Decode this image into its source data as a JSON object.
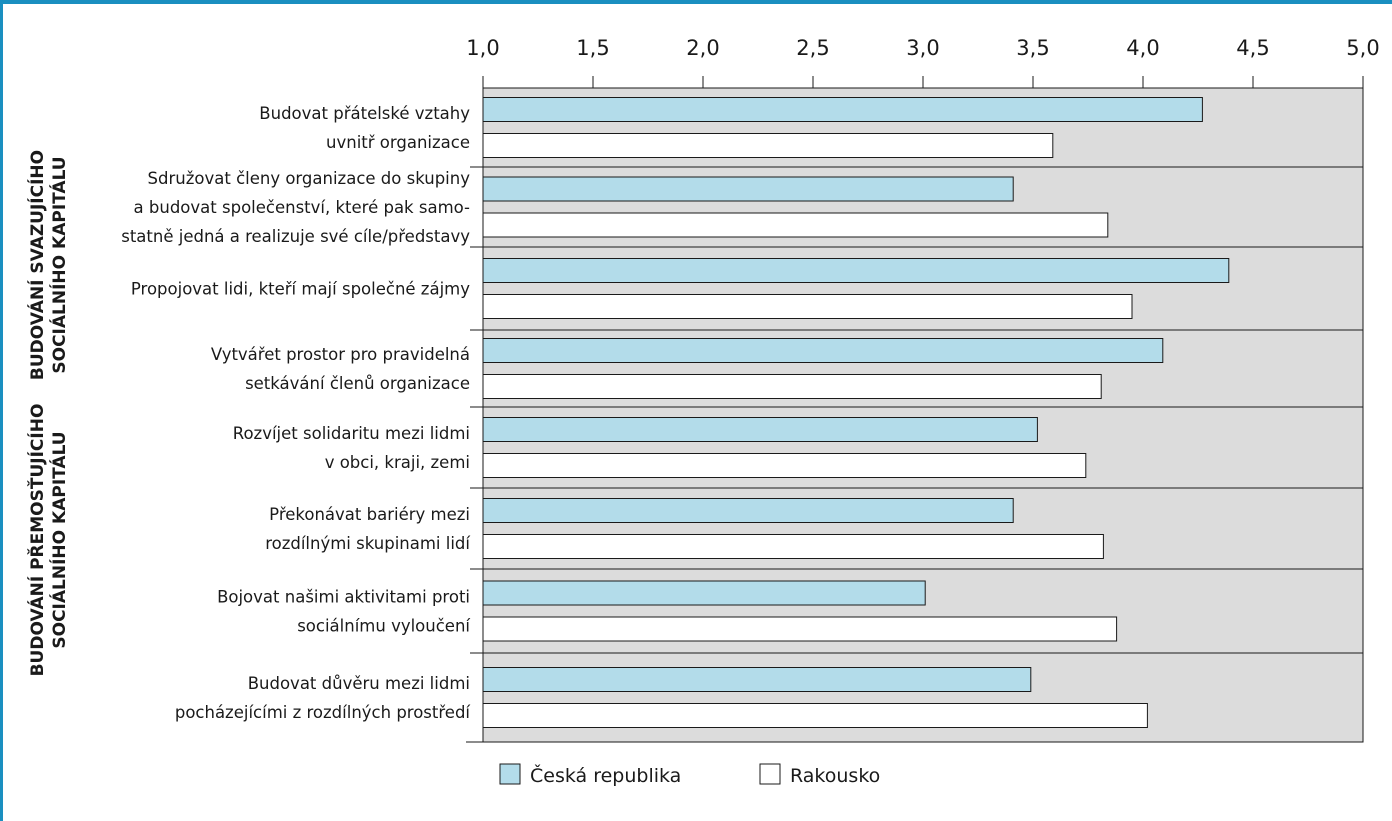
{
  "colors": {
    "ceska_republika": "#b3dcea",
    "rakousko": "#ffffff",
    "plot_background": "#dcdcdc",
    "frame_accent": "#1a8fc0"
  },
  "chart_data": {
    "type": "bar",
    "orientation": "horizontal",
    "xlim": [
      1.0,
      5.0
    ],
    "x_ticks": [
      "1,0",
      "1,5",
      "2,0",
      "2,5",
      "3,0",
      "3,5",
      "4,0",
      "4,5",
      "5,0"
    ],
    "categories": [
      [
        "Budovat přátelské vztahy",
        "uvnitř organizace"
      ],
      [
        "Sdružovat členy organizace do skupiny",
        "a budovat společenství, které pak samo-",
        "statně jedná a realizuje své cíle/představy"
      ],
      [
        "Propojovat lidi, kteří mají společné zájmy"
      ],
      [
        "Vytvářet prostor pro pravidelná",
        "setkávání členů organizace"
      ],
      [
        "Rozvíjet solidaritu mezi lidmi",
        "v obci, kraji, zemi"
      ],
      [
        "Překonávat bariéry mezi",
        "rozdílnými skupinami lidí"
      ],
      [
        "Bojovat našimi aktivitami proti",
        "sociálnímu vyloučení"
      ],
      [
        "Budovat důvěru mezi lidmi",
        "pocházejícími z rozdílných prostředí"
      ]
    ],
    "series": [
      {
        "name": "Česká republika",
        "values": [
          4.27,
          3.41,
          4.39,
          4.09,
          3.52,
          3.41,
          3.01,
          3.49
        ]
      },
      {
        "name": "Rakousko",
        "values": [
          3.59,
          3.84,
          3.95,
          3.81,
          3.74,
          3.82,
          3.88,
          4.02
        ]
      }
    ],
    "groups": [
      {
        "label": [
          "BUDOVÁNÍ SVAZUJÍCÍHO",
          "SOCIÁLNÍHO KAPITÁLU"
        ],
        "categories": [
          0,
          3
        ]
      },
      {
        "label": [
          "BUDOVÁNÍ PŘEMOSŤUJÍCÍHO",
          "SOCIÁLNÍHO KAPITÁLU"
        ],
        "categories": [
          4,
          7
        ]
      }
    ],
    "legend": {
      "position": "bottom",
      "entries": [
        "Česká republika",
        "Rakousko"
      ]
    },
    "grid": false
  }
}
